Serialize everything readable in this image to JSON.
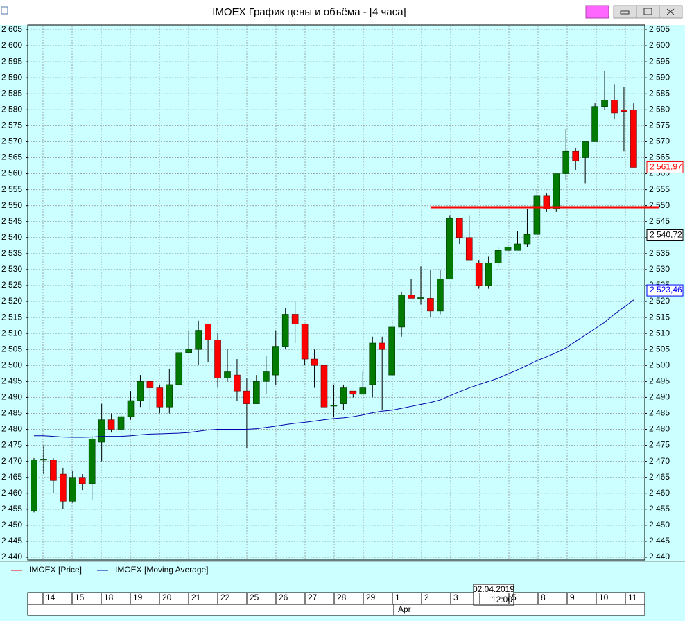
{
  "chart_data": {
    "type": "candlestick",
    "title": "IMOEX График цены и объёма - [4 часа]",
    "ylim": [
      2440,
      2605
    ],
    "yticks": [
      {
        "value": 2440,
        "label": "2 440"
      },
      {
        "value": 2445,
        "label": "2 445"
      },
      {
        "value": 2450,
        "label": "2 450"
      },
      {
        "value": 2455,
        "label": "2 455"
      },
      {
        "value": 2460,
        "label": "2 460"
      },
      {
        "value": 2465,
        "label": "2 465"
      },
      {
        "value": 2470,
        "label": "2 470"
      },
      {
        "value": 2475,
        "label": "2 475"
      },
      {
        "value": 2480,
        "label": "2 480"
      },
      {
        "value": 2485,
        "label": "2 485"
      },
      {
        "value": 2490,
        "label": "2 490"
      },
      {
        "value": 2495,
        "label": "2 495"
      },
      {
        "value": 2500,
        "label": "2 500"
      },
      {
        "value": 2505,
        "label": "2 505"
      },
      {
        "value": 2510,
        "label": "2 510"
      },
      {
        "value": 2515,
        "label": "2 515"
      },
      {
        "value": 2520,
        "label": "2 520"
      },
      {
        "value": 2525,
        "label": "2 525"
      },
      {
        "value": 2530,
        "label": "2 530"
      },
      {
        "value": 2535,
        "label": "2 535"
      },
      {
        "value": 2540,
        "label": "2 540"
      },
      {
        "value": 2545,
        "label": "2 545"
      },
      {
        "value": 2550,
        "label": "2 550"
      },
      {
        "value": 2555,
        "label": "2 555"
      },
      {
        "value": 2560,
        "label": "2 560"
      },
      {
        "value": 2565,
        "label": "2 565"
      },
      {
        "value": 2570,
        "label": "2 570"
      },
      {
        "value": 2575,
        "label": "2 575"
      },
      {
        "value": 2580,
        "label": "2 580"
      },
      {
        "value": 2585,
        "label": "2 585"
      },
      {
        "value": 2590,
        "label": "2 590"
      },
      {
        "value": 2595,
        "label": "2 595"
      },
      {
        "value": 2600,
        "label": "2 600"
      },
      {
        "value": 2605,
        "label": "2 605"
      }
    ],
    "grid": true,
    "series": [
      {
        "name": "IMOEX [Price]",
        "color": "#ff0000",
        "up_color": "#007a00",
        "down_color": "#ff0000",
        "open": [
          2454.5,
          2470.5,
          2470.5,
          2466,
          2457.5,
          2465,
          2463,
          2476,
          2483,
          2480,
          2484,
          2489,
          2495,
          2493,
          2487,
          2494,
          2504,
          2505,
          2513,
          2508,
          2496,
          2497,
          2492,
          2488,
          2495,
          2497,
          2506,
          2516,
          2513,
          2502,
          2500,
          2487.5,
          2488,
          2492,
          2491,
          2494,
          2507,
          2497,
          2512,
          2522,
          2521,
          2521,
          2517,
          2527,
          2546,
          2540,
          2532,
          2525,
          2532,
          2536,
          2536,
          2538,
          2541,
          2553,
          2549,
          2560,
          2567,
          2565,
          2570,
          2581,
          2583,
          2580,
          2580
        ],
        "high": [
          2471,
          2475,
          2471,
          2468,
          2467,
          2466,
          2478,
          2488,
          2485,
          2485,
          2492,
          2497,
          2495,
          2494,
          2499,
          2504,
          2511,
          2514,
          2513,
          2510,
          2505,
          2502,
          2496,
          2497,
          2503,
          2511,
          2518,
          2520,
          2513,
          2505,
          2500,
          2494,
          2494,
          2492,
          2498,
          2509,
          2509,
          2512,
          2523,
          2527,
          2531,
          2530,
          2530,
          2547,
          2546,
          2547,
          2533,
          2534,
          2537,
          2539,
          2542,
          2549,
          2555,
          2554,
          2560,
          2574,
          2568,
          2570,
          2582,
          2592,
          2588,
          2587,
          2582
        ],
        "low": [
          2454,
          2466,
          2460,
          2455,
          2457,
          2461,
          2458,
          2470,
          2479,
          2478,
          2483,
          2487,
          2486,
          2485,
          2485,
          2494,
          2504,
          2500,
          2501,
          2493,
          2495,
          2489,
          2474,
          2488,
          2491,
          2494,
          2505,
          2507,
          2500,
          2493,
          2487,
          2484,
          2486,
          2490,
          2491,
          2490,
          2486,
          2497,
          2509,
          2521,
          2519,
          2515,
          2516,
          2527,
          2538,
          2533,
          2524,
          2524,
          2531,
          2535,
          2536,
          2537,
          2541,
          2548,
          2548,
          2558,
          2561,
          2557,
          2570,
          2580,
          2577,
          2567,
          2562
        ],
        "close": [
          2470.5,
          2470.7,
          2464,
          2457.5,
          2465,
          2463,
          2477,
          2483,
          2480,
          2484,
          2489,
          2495,
          2493,
          2487,
          2494,
          2504,
          2505,
          2511,
          2508,
          2496,
          2498,
          2492,
          2488,
          2495,
          2498,
          2506,
          2516,
          2513,
          2502,
          2500,
          2487,
          2487.6,
          2493,
          2491,
          2493,
          2507,
          2505,
          2512,
          2522,
          2521,
          2521.2,
          2517,
          2527,
          2546,
          2540,
          2533,
          2525,
          2532,
          2536,
          2537,
          2538,
          2541,
          2553,
          2549,
          2560,
          2567,
          2564,
          2570,
          2581,
          2583,
          2579,
          2579.5,
          2561.97
        ]
      },
      {
        "name": "IMOEX [Moving Average]",
        "color": "#0000aa",
        "values": [
          2478,
          2478,
          2477.8,
          2477.6,
          2477.5,
          2477.5,
          2477.6,
          2477.8,
          2477.8,
          2477.8,
          2478,
          2478.3,
          2478.5,
          2478.6,
          2478.7,
          2478.8,
          2479,
          2479.4,
          2479.8,
          2480,
          2480,
          2480,
          2480,
          2480.2,
          2480.6,
          2481,
          2481.5,
          2481.9,
          2482.2,
          2482.6,
          2483,
          2483.4,
          2483.6,
          2484,
          2484.5,
          2485.2,
          2485.7,
          2486,
          2486.6,
          2487.2,
          2487.8,
          2488.4,
          2489.2,
          2490.5,
          2491.8,
          2493,
          2494,
          2495,
          2496,
          2497.3,
          2498.6,
          2500,
          2501.5,
          2502.7,
          2504,
          2505.5,
          2507.5,
          2509.5,
          2511.5,
          2513.5,
          2516,
          2518.2,
          2520.5
        ]
      }
    ],
    "hline": {
      "value": 2549.5,
      "color": "#ff0000",
      "start": 42
    },
    "price_labels": [
      {
        "value": 2561.97,
        "label": "2 561,97",
        "color": "#ff0000"
      },
      {
        "value": 2540.72,
        "label": "2 540,72",
        "color": "#000000"
      },
      {
        "value": 2523.46,
        "label": "2 523,46",
        "color": "#0000ff"
      }
    ],
    "days": [
      "14",
      "15",
      "18",
      "19",
      "20",
      "21",
      "22",
      "25",
      "26",
      "27",
      "28",
      "29",
      "1",
      "2",
      "3",
      null,
      "5",
      "8",
      "9",
      "10",
      "11"
    ],
    "month": "Apr",
    "cursor": {
      "date": "02.04.2019",
      "time": "12:00"
    }
  }
}
